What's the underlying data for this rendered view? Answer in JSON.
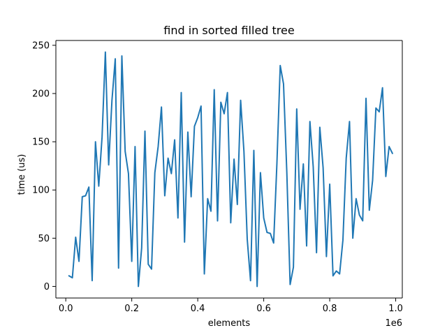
{
  "chart_data": {
    "type": "line",
    "title": "find in sorted filled tree",
    "xlabel": "elements",
    "ylabel": "time (us)",
    "x_offset_label": "1e6",
    "x_scale": 1000000,
    "xlim": [
      -30000,
      1020000
    ],
    "ylim": [
      -12,
      255
    ],
    "grid": false,
    "x_ticks": [
      {
        "value": 0,
        "label": "0.0"
      },
      {
        "value": 200000,
        "label": "0.2"
      },
      {
        "value": 400000,
        "label": "0.4"
      },
      {
        "value": 600000,
        "label": "0.6"
      },
      {
        "value": 800000,
        "label": "0.8"
      },
      {
        "value": 1000000,
        "label": "1.0"
      }
    ],
    "y_ticks": [
      {
        "value": 0,
        "label": "0"
      },
      {
        "value": 50,
        "label": "50"
      },
      {
        "value": 100,
        "label": "100"
      },
      {
        "value": 150,
        "label": "150"
      },
      {
        "value": 200,
        "label": "200"
      },
      {
        "value": 250,
        "label": "250"
      }
    ],
    "series": [
      {
        "color": "#1f77b4",
        "x": [
          10000,
          20000,
          30000,
          40000,
          50000,
          60000,
          70000,
          80000,
          90000,
          100000,
          110000,
          120000,
          130000,
          140000,
          150000,
          160000,
          170000,
          180000,
          190000,
          200000,
          210000,
          220000,
          230000,
          240000,
          250000,
          260000,
          270000,
          280000,
          290000,
          300000,
          310000,
          320000,
          330000,
          340000,
          350000,
          360000,
          370000,
          380000,
          390000,
          400000,
          410000,
          420000,
          430000,
          440000,
          450000,
          460000,
          470000,
          480000,
          490000,
          500000,
          510000,
          520000,
          530000,
          540000,
          550000,
          560000,
          570000,
          580000,
          590000,
          600000,
          610000,
          620000,
          630000,
          640000,
          650000,
          660000,
          670000,
          680000,
          690000,
          700000,
          710000,
          720000,
          730000,
          740000,
          750000,
          760000,
          770000,
          780000,
          790000,
          800000,
          810000,
          820000,
          830000,
          840000,
          850000,
          860000,
          870000,
          880000,
          890000,
          900000,
          910000,
          920000,
          930000,
          940000,
          950000,
          960000,
          970000,
          980000,
          990000
        ],
        "y": [
          11,
          9,
          51,
          26,
          93,
          94,
          103,
          6,
          150,
          104,
          155,
          243,
          126,
          193,
          236,
          19,
          239,
          140,
          117,
          26,
          145,
          0,
          40,
          161,
          23,
          18,
          118,
          145,
          186,
          94,
          133,
          117,
          152,
          71,
          201,
          46,
          160,
          93,
          166,
          175,
          187,
          13,
          91,
          78,
          204,
          68,
          191,
          179,
          201,
          66,
          132,
          85,
          193,
          140,
          49,
          6,
          141,
          0,
          118,
          71,
          56,
          55,
          45,
          128,
          229,
          210,
          118,
          2,
          20,
          184,
          80,
          127,
          42,
          171,
          124,
          35,
          165,
          123,
          31,
          106,
          11,
          16,
          13,
          48,
          133,
          171,
          50,
          91,
          74,
          68,
          195,
          79,
          110,
          185,
          181,
          206,
          114,
          145,
          138
        ]
      }
    ]
  }
}
